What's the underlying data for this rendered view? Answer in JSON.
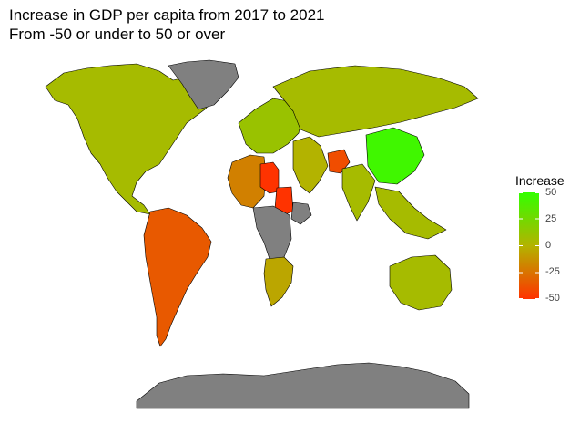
{
  "title": "Increase in GDP per capita from 2017 to 2021",
  "subtitle": "From -50 or under to 50 or over",
  "legend": {
    "title": "Increase",
    "ticks": [
      "50",
      "25",
      "0",
      "-25",
      "-50"
    ],
    "scale_max": 50,
    "scale_min": -50
  },
  "colors": {
    "high": "#33ff00",
    "mid": "#b3b300",
    "low": "#ff3300",
    "no_data": "#808080",
    "border": "#000000"
  },
  "chart_data": {
    "type": "map",
    "title": "Increase in GDP per capita from 2017 to 2021",
    "subtitle": "From -50 or under to 50 or over",
    "legend_title": "Increase",
    "legend_range": [
      -50,
      50
    ],
    "legend_placement": "right",
    "regions": [
      {
        "name": "North America",
        "value": 5
      },
      {
        "name": "Greenland",
        "value": null
      },
      {
        "name": "South America",
        "value": -35
      },
      {
        "name": "Northwest Africa",
        "value": -20
      },
      {
        "name": "Libya",
        "value": -50
      },
      {
        "name": "Sudan",
        "value": -50
      },
      {
        "name": "Horn of Africa",
        "value": null
      },
      {
        "name": "Central Africa",
        "value": null
      },
      {
        "name": "Southern Africa",
        "value": -5
      },
      {
        "name": "Europe",
        "value": 10
      },
      {
        "name": "Russia",
        "value": 5
      },
      {
        "name": "Middle East",
        "value": 0
      },
      {
        "name": "Afghanistan",
        "value": -40
      },
      {
        "name": "India",
        "value": 5
      },
      {
        "name": "China",
        "value": 45
      },
      {
        "name": "Southeast Asia",
        "value": 5
      },
      {
        "name": "Australia",
        "value": 5
      },
      {
        "name": "Antarctica",
        "value": null
      }
    ]
  }
}
